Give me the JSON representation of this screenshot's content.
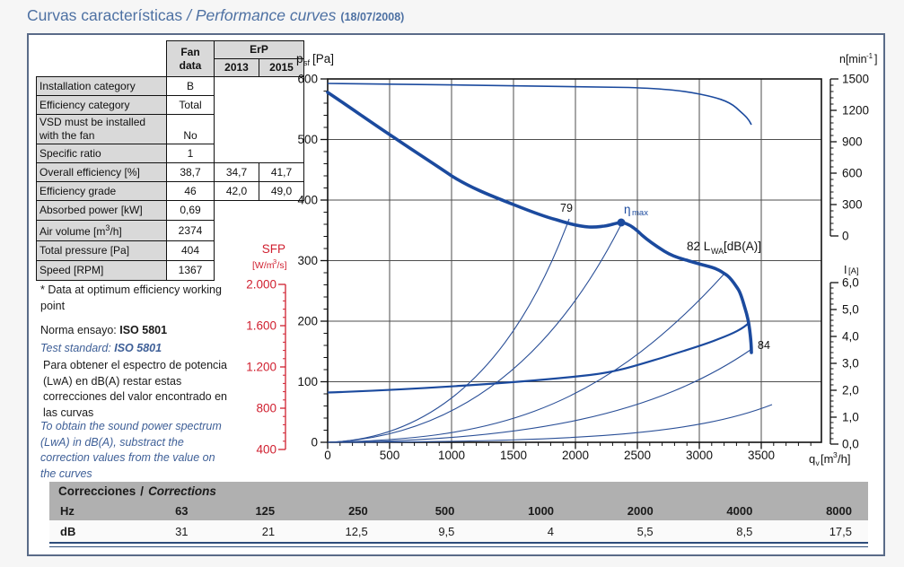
{
  "title": {
    "es": "Curvas características",
    "en": "/ Performance curves",
    "date": "(18/07/2008)"
  },
  "fan_table": {
    "header": {
      "fan": "Fan data",
      "erp": "ErP",
      "y2013": "2013",
      "y2015": "2015"
    },
    "rows": [
      {
        "label": "Installation category",
        "fan": "B"
      },
      {
        "label": "Efficiency category",
        "fan": "Total"
      },
      {
        "label": "VSD must be installed with the fan",
        "fan": "No"
      },
      {
        "label": "Specific ratio",
        "fan": "1"
      },
      {
        "label": "Overall efficiency [%]",
        "fan": "38,7",
        "y2013": "34,7",
        "y2015": "41,7"
      },
      {
        "label": "Efficiency grade",
        "fan": "46",
        "y2013": "42,0",
        "y2015": "49,0"
      },
      {
        "label": "Absorbed power [kW]",
        "fan": "0,69"
      },
      {
        "label_pre": "Air volume [m",
        "label_sup": "3",
        "label_post": "/h]",
        "fan": "2374"
      },
      {
        "label": "Total pressure [Pa]",
        "fan": "404"
      },
      {
        "label": "Speed [RPM]",
        "fan": "1367"
      }
    ]
  },
  "notes": {
    "opt": "* Data at optimum efficiency working point",
    "norma_pre": "Norma ensayo:",
    "norma_bold": "ISO 5801",
    "test_pre": "Test standard:",
    "test_bold": "ISO 5801",
    "para_es": "Para obtener el espectro de potencia (LwA) en dB(A) restar estas correcciones del valor encontrado en las curvas",
    "para_en": "To obtain the sound power spectrum (LwA) in dB(A), substract the correction values from the value on the curves"
  },
  "sfp": {
    "title": "SFP",
    "units": [
      "[W/m",
      "3",
      "/s]"
    ],
    "ticks": [
      "2.000",
      "1.600",
      "1.200",
      "800",
      "400"
    ]
  },
  "chart": {
    "psf_title": [
      "p",
      "sf",
      "[Pa]"
    ],
    "psf_ticks": [
      "600",
      "500",
      "400",
      "300",
      "200",
      "100",
      "0"
    ],
    "x_ticks": [
      "0",
      "500",
      "1000",
      "1500",
      "2000",
      "2500",
      "3000",
      "3500"
    ],
    "x_title": [
      "q",
      "v",
      "[m",
      "3",
      "/h]"
    ],
    "n_title": [
      "n[min",
      "-1",
      "]"
    ],
    "n_ticks": [
      "1500",
      "1200",
      "900",
      "600",
      "300",
      "0"
    ],
    "i_title": [
      "I",
      "[A]"
    ],
    "i_ticks": [
      "6,0",
      "5,0",
      "4,0",
      "3,0",
      "2,0",
      "1,0",
      "0,0"
    ],
    "labels": {
      "v79": "79",
      "eta": "η",
      "eta_sub": "max",
      "l82": "82 L",
      "l82_sub": "WA",
      "l82_post": "[dB(A)]",
      "v84": "84"
    }
  },
  "corrections": {
    "title_es": "Correcciones",
    "title_sep": "/",
    "title_en": "Corrections",
    "row1_label": "Hz",
    "freqs": [
      "63",
      "125",
      "250",
      "500",
      "1000",
      "2000",
      "4000",
      "8000"
    ],
    "row2_label": "dB",
    "values": [
      "31",
      "21",
      "12,5",
      "9,5",
      "4",
      "5,5",
      "8,5",
      "17,5"
    ]
  },
  "chart_data": {
    "type": "line",
    "title": "Curvas características / Performance curves (18/07/2008)",
    "xlabel": "qv [m3/h]",
    "ylabel_left": "psf [Pa]",
    "ylabel_left2": "SFP [W/m3/s]",
    "ylabel_right1": "n [min-1]",
    "ylabel_right2": "I [A]",
    "x_range": [
      0,
      4000
    ],
    "psf_range": [
      0,
      600
    ],
    "sfp_range": [
      400,
      2000
    ],
    "n_range": [
      0,
      1500
    ],
    "i_range": [
      0,
      6
    ],
    "grid": true,
    "series": [
      {
        "name": "static-pressure-psf",
        "axis": "psf[Pa]",
        "points": [
          [
            0,
            578
          ],
          [
            250,
            545
          ],
          [
            500,
            505
          ],
          [
            750,
            472
          ],
          [
            1000,
            440
          ],
          [
            1250,
            415
          ],
          [
            1500,
            393
          ],
          [
            1750,
            375
          ],
          [
            2000,
            362
          ],
          [
            2150,
            357
          ],
          [
            2370,
            363
          ],
          [
            2600,
            346
          ],
          [
            2900,
            323
          ],
          [
            3100,
            298
          ],
          [
            3250,
            255
          ],
          [
            3350,
            203
          ],
          [
            3420,
            148
          ]
        ]
      },
      {
        "name": "rotational-speed-n",
        "axis": "n[min-1]",
        "points": [
          [
            0,
            1457
          ],
          [
            1000,
            1450
          ],
          [
            2000,
            1435
          ],
          [
            2430,
            1423
          ],
          [
            3010,
            1354
          ],
          [
            3300,
            1225
          ],
          [
            3420,
            1063
          ]
        ]
      },
      {
        "name": "current-I",
        "axis": "I[A]",
        "points": [
          [
            0,
            1.9
          ],
          [
            1000,
            2.25
          ],
          [
            2000,
            2.55
          ],
          [
            2700,
            3.2
          ],
          [
            3150,
            3.85
          ],
          [
            3400,
            4.5
          ]
        ]
      }
    ],
    "annotations": [
      {
        "text": "79",
        "q": 1950,
        "psf": 372,
        "meaning": "LWA 79 dB(A) system curve"
      },
      {
        "text": "ηmax",
        "q": 2370,
        "psf": 363,
        "meaning": "maximum efficiency working point"
      },
      {
        "text": "82 LWA[dB(A)]",
        "q": 3170,
        "psf": 280,
        "meaning": "LWA 82 dB(A) system curve"
      },
      {
        "text": "84",
        "q": 3420,
        "psf": 150,
        "meaning": "LWA 84 dB(A) at end of curve"
      }
    ]
  }
}
